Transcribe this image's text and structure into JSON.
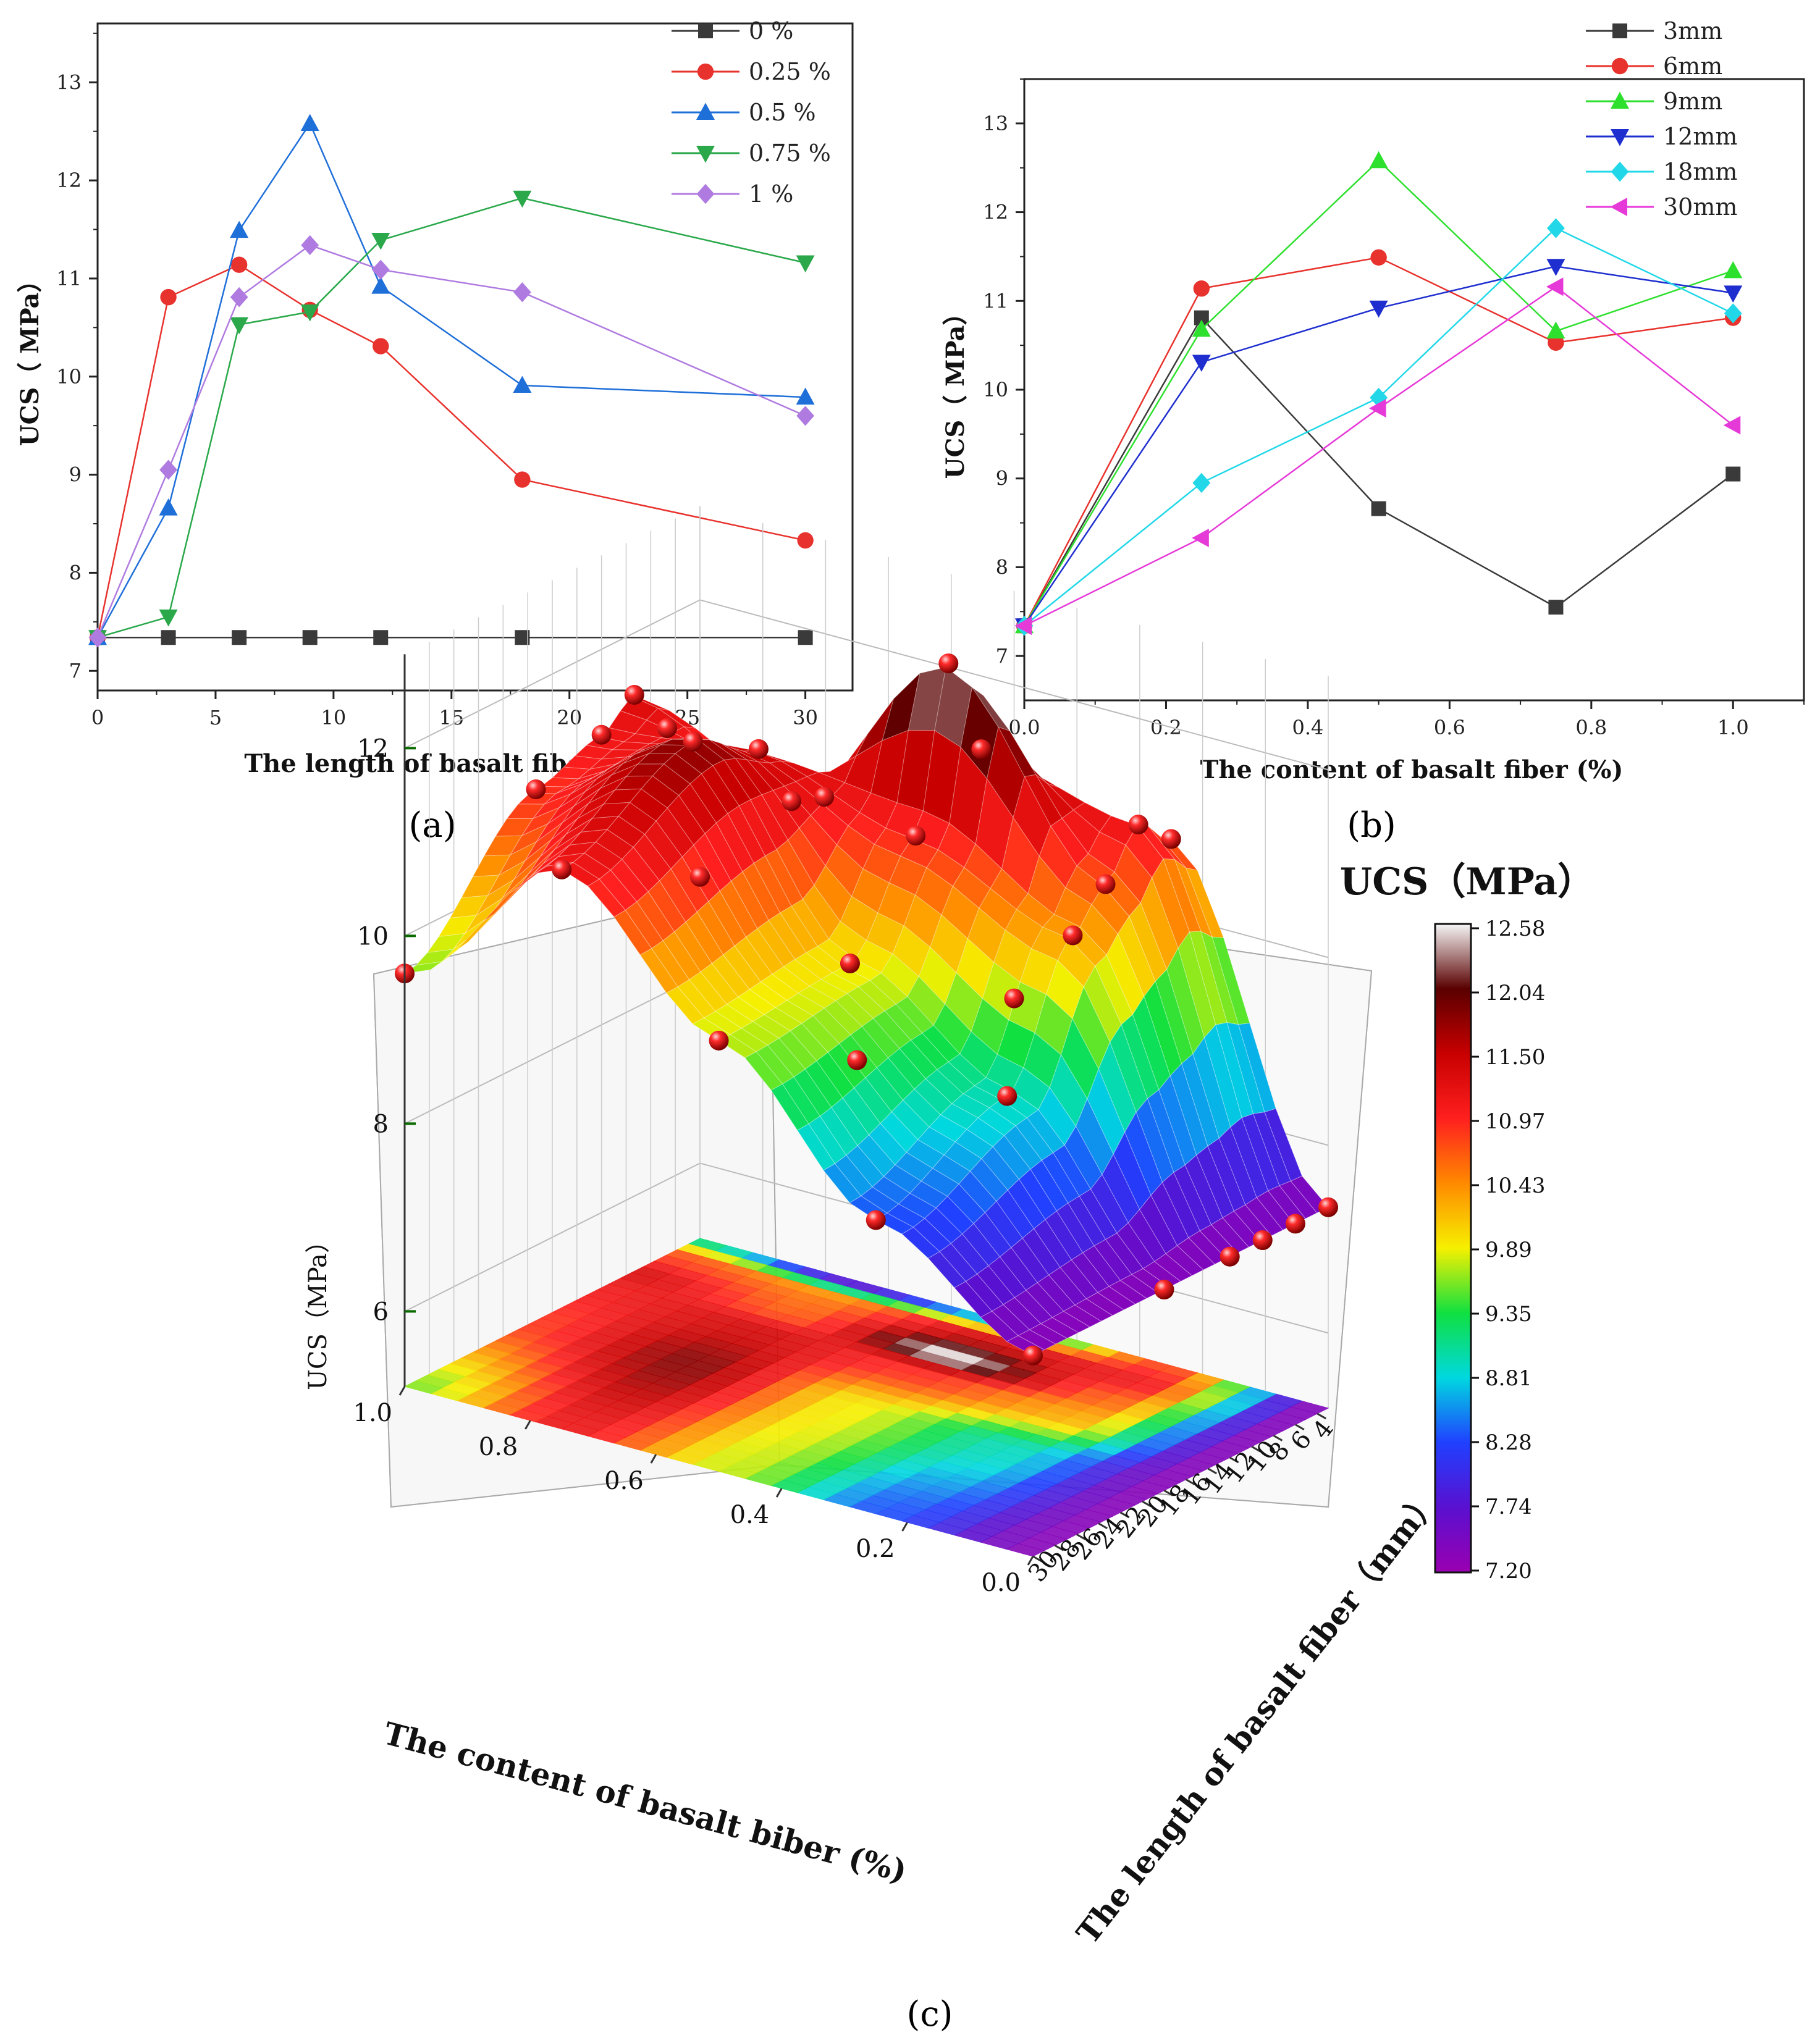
{
  "chart_data": [
    {
      "id": "a",
      "type": "line",
      "panel_label": "(a)",
      "xlabel": "The length of basalt fiber（ mm）",
      "ylabel": "UCS（ MPa）",
      "xlim": [
        0,
        32
      ],
      "ylim": [
        6.8,
        13.6
      ],
      "xticks": [
        0,
        5,
        10,
        15,
        20,
        25,
        30
      ],
      "yticks": [
        7,
        8,
        9,
        10,
        11,
        12,
        13
      ],
      "legend_position": "top-right",
      "x": [
        0,
        3,
        6,
        9,
        12,
        18,
        30
      ],
      "series": [
        {
          "name": "0 %",
          "color": "#3a3a3a",
          "marker": "square",
          "values": [
            7.34,
            7.34,
            7.34,
            7.34,
            7.34,
            7.34,
            7.34
          ]
        },
        {
          "name": "0.25 %",
          "color": "#e8322d",
          "marker": "circle",
          "values": [
            7.34,
            10.81,
            11.14,
            10.68,
            10.31,
            8.95,
            8.33
          ]
        },
        {
          "name": "0.5 %",
          "color": "#1f6fd9",
          "marker": "triangle-up",
          "values": [
            7.34,
            8.66,
            11.49,
            12.58,
            10.92,
            9.91,
            9.79
          ]
        },
        {
          "name": "0.75 %",
          "color": "#2aa84a",
          "marker": "triangle-down",
          "values": [
            7.34,
            7.55,
            10.53,
            10.66,
            11.39,
            11.82,
            11.16
          ]
        },
        {
          "name": "1 %",
          "color": "#b07be0",
          "marker": "diamond",
          "values": [
            7.34,
            9.05,
            10.81,
            11.34,
            11.09,
            10.86,
            9.6
          ]
        }
      ]
    },
    {
      "id": "b",
      "type": "line",
      "panel_label": "(b)",
      "xlabel": "The content of basalt fiber (%)",
      "ylabel": "UCS（ MPa）",
      "xlim": [
        0,
        1.1
      ],
      "ylim": [
        6.5,
        13.5
      ],
      "xticks": [
        0.0,
        0.2,
        0.4,
        0.6,
        0.8,
        1.0
      ],
      "xtick_labels": [
        "0.0",
        "0.2",
        "0.4",
        "0.6",
        "0.8",
        "1.0"
      ],
      "yticks": [
        7,
        8,
        9,
        10,
        11,
        12,
        13
      ],
      "legend_position": "top-right",
      "x": [
        0,
        0.25,
        0.5,
        0.75,
        1.0
      ],
      "series": [
        {
          "name": "3mm",
          "color": "#3a3a3a",
          "marker": "square",
          "values": [
            7.34,
            10.81,
            8.66,
            7.55,
            9.05
          ]
        },
        {
          "name": "6mm",
          "color": "#e8322d",
          "marker": "circle",
          "values": [
            7.34,
            11.14,
            11.49,
            10.53,
            10.81
          ]
        },
        {
          "name": "9mm",
          "color": "#2ee02e",
          "marker": "triangle-up",
          "values": [
            7.34,
            10.68,
            12.58,
            10.66,
            11.34
          ]
        },
        {
          "name": "12mm",
          "color": "#1f2fcf",
          "marker": "triangle-down",
          "values": [
            7.34,
            10.31,
            10.92,
            11.39,
            11.09
          ]
        },
        {
          "name": "18mm",
          "color": "#22d8e8",
          "marker": "diamond",
          "values": [
            7.34,
            8.95,
            9.91,
            11.82,
            10.86
          ]
        },
        {
          "name": "30mm",
          "color": "#e63ad8",
          "marker": "triangle-left",
          "values": [
            7.34,
            8.33,
            9.79,
            11.16,
            9.6
          ]
        }
      ]
    },
    {
      "id": "c",
      "type": "surface",
      "panel_label": "(c)",
      "zlabel": "UCS（MPa）",
      "xlabel": "The content of basalt biber (%)",
      "ylabel": "The length of basalt fiber（mm）",
      "zticks": [
        6,
        8,
        10,
        12
      ],
      "content_ticks": [
        "1.0",
        "0.8",
        "0.6",
        "0.4",
        "0.2",
        "0.0"
      ],
      "length_ticks": [
        "30",
        "28",
        "26",
        "24",
        "22",
        "20",
        "18",
        "16",
        "14",
        "12",
        "10",
        "8",
        "6",
        "4"
      ],
      "colorbar_title": "UCS（MPa）",
      "colorbar_ticks": [
        "12.58",
        "12.04",
        "11.50",
        "10.97",
        "10.43",
        "9.89",
        "9.35",
        "8.81",
        "8.28",
        "7.74",
        "7.20"
      ],
      "colorbar_range": [
        7.2,
        12.58
      ],
      "colorbar_stops": [
        "#f6f6f6",
        "#5a0000",
        "#c80000",
        "#ff1f1f",
        "#ff8a00",
        "#f6f000",
        "#10e040",
        "#00d8e0",
        "#2040ff",
        "#5a10d0",
        "#9a00b0"
      ],
      "content_values": [
        0,
        0.25,
        0.5,
        0.75,
        1.0
      ],
      "length_values": [
        3,
        6,
        9,
        12,
        18,
        30
      ],
      "ucs_grid": [
        [
          7.34,
          7.34,
          7.34,
          7.34,
          7.34,
          7.34
        ],
        [
          10.81,
          11.14,
          10.68,
          10.31,
          8.95,
          8.33
        ],
        [
          8.66,
          11.49,
          12.58,
          10.92,
          9.91,
          9.79
        ],
        [
          7.55,
          10.53,
          10.66,
          11.39,
          11.82,
          11.16
        ],
        [
          9.05,
          10.81,
          11.34,
          11.09,
          10.86,
          9.6
        ]
      ]
    }
  ]
}
